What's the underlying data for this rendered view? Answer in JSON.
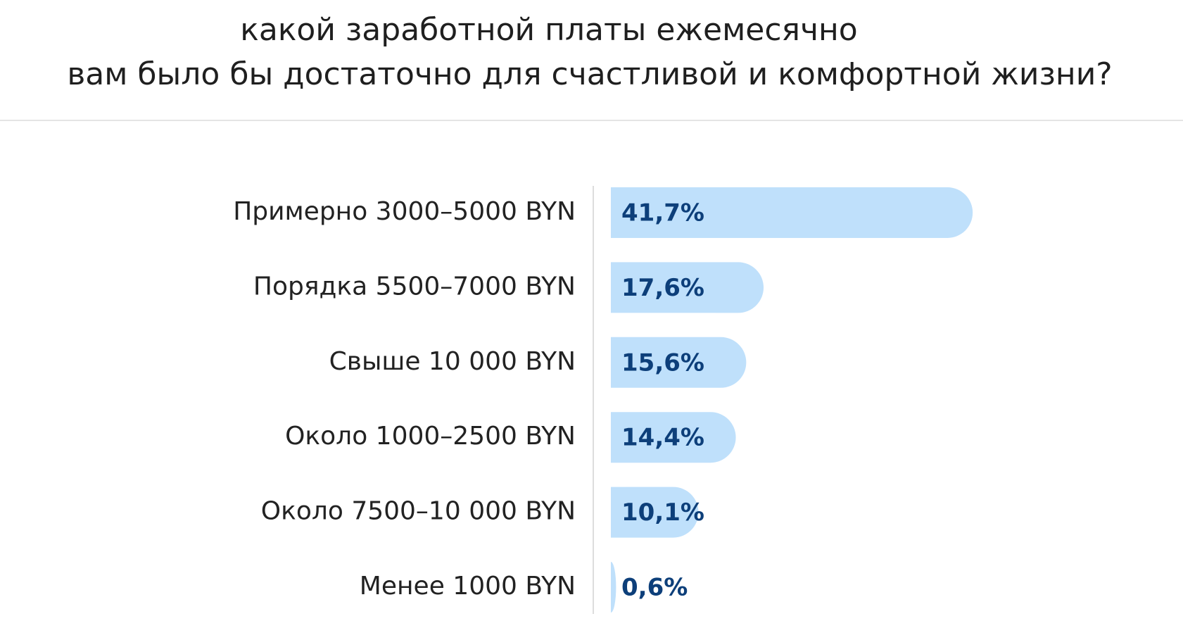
{
  "chart_data": {
    "type": "bar",
    "orientation": "horizontal",
    "title": [
      "какой заработной платы ежемесячно",
      "вам было бы достаточно для счастливой и комфортной жизни?"
    ],
    "categories": [
      "Примерно 3000–5000 BYN",
      "Порядка 5500–7000 BYN",
      "Свыше 10 000 BYN",
      "Около 1000–2500 BYN",
      "Около 7500–10 000 BYN",
      "Менее 1000 BYN"
    ],
    "values": [
      41.7,
      17.6,
      15.6,
      14.4,
      10.1,
      0.6
    ],
    "value_labels": [
      "41,7%",
      "17,6%",
      "15,6%",
      "14,4%",
      "10,1%",
      "0,6%"
    ],
    "color": "#bfe0fb"
  }
}
